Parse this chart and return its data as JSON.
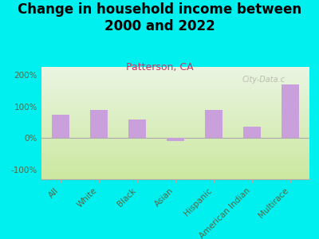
{
  "title": "Change in household income between\n2000 and 2022",
  "subtitle": "Patterson, CA",
  "categories": [
    "All",
    "White",
    "Black",
    "Asian",
    "Hispanic",
    "American Indian",
    "Multirace"
  ],
  "values": [
    75,
    90,
    60,
    -10,
    90,
    35,
    170
  ],
  "bar_color": "#c9a0dc",
  "background_outer": "#00efef",
  "ax_background_top_color": "#eaf5e2",
  "ax_background_bottom_color": "#cce8a0",
  "ylabel_ticks": [
    "-100%",
    "0%",
    "100%",
    "200%"
  ],
  "yticks": [
    -100,
    0,
    100,
    200
  ],
  "ylim": [
    -130,
    225
  ],
  "title_fontsize": 12,
  "subtitle_fontsize": 9,
  "tick_fontsize": 7.5,
  "watermark": "City-Data.c",
  "bar_width": 0.45
}
